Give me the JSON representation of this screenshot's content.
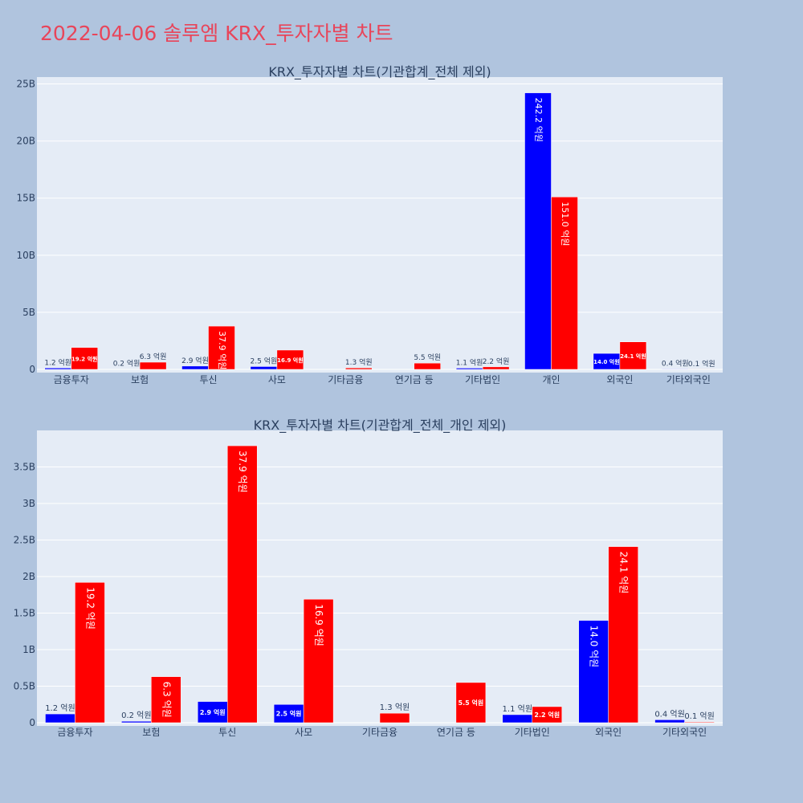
{
  "page_title": "2022-04-06 솔루엠 KRX_투자자별 차트",
  "colors": {
    "buy": "#0000ff",
    "sell": "#ff0000",
    "plot_bg": "#e5ecf6",
    "page_bg": "#b0c4de",
    "title": "#e8455a"
  },
  "chart_data": [
    {
      "type": "bar",
      "title": "KRX_투자자별 차트(기관합계_전체 제외)",
      "categories": [
        "금융투자",
        "보험",
        "투신",
        "사모",
        "기타금융",
        "연기금 등",
        "기타법인",
        "개인",
        "외국인",
        "기타외국인"
      ],
      "series": [
        {
          "values": [
            120000000,
            20000000,
            290000000,
            250000000,
            0,
            0,
            110000000,
            24220000000,
            1400000000,
            40000000
          ],
          "labels": [
            "1.2 억원",
            "0.2 억원",
            "2.9 억원",
            "2.5 억원",
            "",
            "",
            "1.1 억원",
            "242.2 억원",
            "14.0 억원",
            "0.4 억원"
          ]
        },
        {
          "values": [
            1920000000,
            630000000,
            3790000000,
            1690000000,
            130000000,
            550000000,
            220000000,
            15100000000,
            2410000000,
            10000000
          ],
          "labels": [
            "19.2 억원",
            "6.3 억원",
            "37.9 억원",
            "16.9 억원",
            "1.3 억원",
            "5.5 억원",
            "2.2 억원",
            "151.0 억원",
            "24.1 억원",
            "0.1 억원"
          ]
        }
      ],
      "ylim": [
        0,
        25600000000
      ],
      "yticks": [
        0,
        5000000000,
        10000000000,
        15000000000,
        20000000000,
        25000000000
      ],
      "ytick_labels": [
        "0",
        "5B",
        "10B",
        "15B",
        "20B",
        "25B"
      ],
      "grid": true,
      "legend": false
    },
    {
      "type": "bar",
      "title": "KRX_투자자별 차트(기관합계_전체_개인 제외)",
      "categories": [
        "금융투자",
        "보험",
        "투신",
        "사모",
        "기타금융",
        "연기금 등",
        "기타법인",
        "외국인",
        "기타외국인"
      ],
      "series": [
        {
          "values": [
            120000000,
            20000000,
            290000000,
            250000000,
            0,
            0,
            110000000,
            1400000000,
            40000000
          ],
          "labels": [
            "1.2 억원",
            "0.2 억원",
            "2.9 억원",
            "2.5 억원",
            "",
            "",
            "1.1 억원",
            "14.0 억원",
            "0.4 억원"
          ]
        },
        {
          "values": [
            1920000000,
            630000000,
            3790000000,
            1690000000,
            130000000,
            550000000,
            220000000,
            2410000000,
            10000000
          ],
          "labels": [
            "19.2 억원",
            "6.3 억원",
            "37.9 억원",
            "16.9 억원",
            "1.3 억원",
            "5.5 억원",
            "2.2 억원",
            "24.1 억원",
            "0.1 억원"
          ]
        }
      ],
      "ylim": [
        0,
        4000000000
      ],
      "yticks": [
        0,
        500000000,
        1000000000,
        1500000000,
        2000000000,
        2500000000,
        3000000000,
        3500000000
      ],
      "ytick_labels": [
        "0",
        "0.5B",
        "1B",
        "1.5B",
        "2B",
        "2.5B",
        "3B",
        "3.5B"
      ],
      "grid": true,
      "legend": false
    }
  ]
}
